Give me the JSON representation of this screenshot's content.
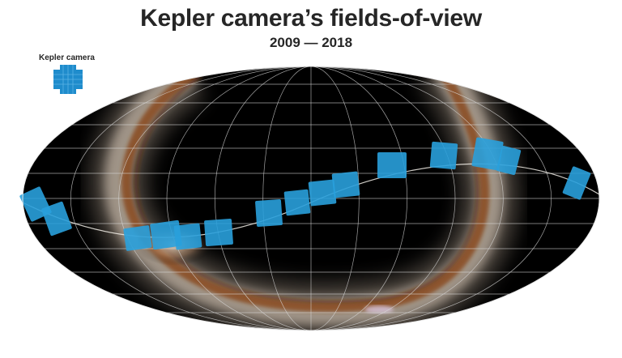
{
  "title": "Kepler camera’s fields-of-view",
  "subtitle": "2009 — 2018",
  "legend": {
    "label": "Kepler camera",
    "color": "#1f8ccc"
  },
  "colors": {
    "sky": "#000000",
    "grid": "#d9d9d9",
    "ecliptic": "#f2eee8",
    "milky_way_dust": "#8a4a20",
    "milky_way_glow": "#f5e6d6",
    "camera_fill": "#29a0db"
  }
}
